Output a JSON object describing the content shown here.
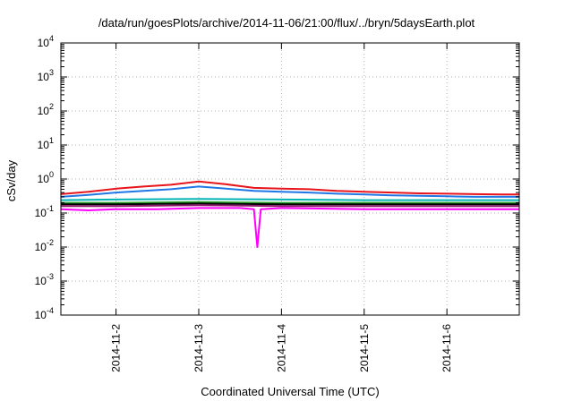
{
  "chart_data": {
    "type": "line",
    "title": "/data/run/goesPlots/archive/2014-11-06/21:00/flux/../bryn/5daysEarth.plot",
    "xlabel": "Coordinated Universal Time (UTC)",
    "ylabel": "cSv/day",
    "y_scale": "log",
    "ylim": [
      0.0001,
      10000
    ],
    "xlim": [
      "2014-11-01T08:00",
      "2014-11-06T21:00"
    ],
    "x_ticks": [
      "2014-11-2",
      "2014-11-3",
      "2014-11-4",
      "2014-11-5",
      "2014-11-6"
    ],
    "y_ticks": [
      {
        "base": "10",
        "exp": "-4"
      },
      {
        "base": "10",
        "exp": "-3"
      },
      {
        "base": "10",
        "exp": "-2"
      },
      {
        "base": "10",
        "exp": "-1"
      },
      {
        "base": "10",
        "exp": "0"
      },
      {
        "base": "10",
        "exp": "1"
      },
      {
        "base": "10",
        "exp": "2"
      },
      {
        "base": "10",
        "exp": "3"
      },
      {
        "base": "10",
        "exp": "4"
      }
    ],
    "grid": true,
    "legend": "none",
    "series": [
      {
        "color": "#e8141b",
        "x": [
          "2014-11-01T08:00",
          "2014-11-01T16:00",
          "2014-11-02T00:00",
          "2014-11-02T08:00",
          "2014-11-02T16:00",
          "2014-11-03T00:00",
          "2014-11-03T08:00",
          "2014-11-03T16:00",
          "2014-11-04T00:00",
          "2014-11-04T08:00",
          "2014-11-04T16:00",
          "2014-11-05T00:00",
          "2014-11-05T08:00",
          "2014-11-05T16:00",
          "2014-11-06T00:00",
          "2014-11-06T08:00",
          "2014-11-06T16:00",
          "2014-11-06T21:00"
        ],
        "values": [
          0.36,
          0.42,
          0.52,
          0.6,
          0.68,
          0.85,
          0.7,
          0.55,
          0.52,
          0.5,
          0.45,
          0.42,
          0.4,
          0.38,
          0.37,
          0.36,
          0.35,
          0.35
        ]
      },
      {
        "color": "#1f78e6",
        "x": [
          "2014-11-01T08:00",
          "2014-11-01T16:00",
          "2014-11-02T00:00",
          "2014-11-02T08:00",
          "2014-11-02T16:00",
          "2014-11-03T00:00",
          "2014-11-03T08:00",
          "2014-11-03T16:00",
          "2014-11-04T00:00",
          "2014-11-04T08:00",
          "2014-11-04T16:00",
          "2014-11-05T00:00",
          "2014-11-05T08:00",
          "2014-11-05T16:00",
          "2014-11-06T00:00",
          "2014-11-06T08:00",
          "2014-11-06T16:00",
          "2014-11-06T21:00"
        ],
        "values": [
          0.3,
          0.34,
          0.4,
          0.45,
          0.5,
          0.6,
          0.52,
          0.45,
          0.42,
          0.4,
          0.37,
          0.35,
          0.33,
          0.32,
          0.31,
          0.3,
          0.3,
          0.3
        ]
      },
      {
        "color": "#00b4b4",
        "x": [
          "2014-11-01T08:00",
          "2014-11-02T00:00",
          "2014-11-03T00:00",
          "2014-11-04T00:00",
          "2014-11-05T00:00",
          "2014-11-06T00:00",
          "2014-11-06T21:00"
        ],
        "values": [
          0.24,
          0.25,
          0.26,
          0.25,
          0.24,
          0.24,
          0.24
        ]
      },
      {
        "color": "#2ca02c",
        "x": [
          "2014-11-01T08:00",
          "2014-11-02T00:00",
          "2014-11-03T00:00",
          "2014-11-04T00:00",
          "2014-11-05T00:00",
          "2014-11-06T00:00",
          "2014-11-06T21:00"
        ],
        "values": [
          0.2,
          0.2,
          0.21,
          0.2,
          0.2,
          0.2,
          0.2
        ]
      },
      {
        "color": "#000000",
        "x": [
          "2014-11-01T08:00",
          "2014-11-02T00:00",
          "2014-11-03T00:00",
          "2014-11-04T00:00",
          "2014-11-05T00:00",
          "2014-11-06T00:00",
          "2014-11-06T21:00"
        ],
        "values": [
          0.18,
          0.18,
          0.19,
          0.18,
          0.18,
          0.18,
          0.18
        ]
      },
      {
        "color": "#8b1a6b",
        "x": [
          "2014-11-01T08:00",
          "2014-11-02T00:00",
          "2014-11-03T00:00",
          "2014-11-04T00:00",
          "2014-11-05T00:00",
          "2014-11-06T00:00",
          "2014-11-06T21:00"
        ],
        "values": [
          0.16,
          0.16,
          0.17,
          0.16,
          0.16,
          0.16,
          0.16
        ]
      },
      {
        "color": "#ff00ff",
        "x": [
          "2014-11-01T08:00",
          "2014-11-01T16:00",
          "2014-11-02T00:00",
          "2014-11-02T12:00",
          "2014-11-03T00:00",
          "2014-11-03T12:00",
          "2014-11-03T16:00",
          "2014-11-03T17:00",
          "2014-11-03T18:00",
          "2014-11-04T00:00",
          "2014-11-05T00:00",
          "2014-11-06T00:00",
          "2014-11-06T21:00"
        ],
        "values": [
          0.13,
          0.12,
          0.13,
          0.13,
          0.14,
          0.14,
          0.13,
          0.01,
          0.13,
          0.14,
          0.13,
          0.13,
          0.13
        ]
      }
    ]
  }
}
